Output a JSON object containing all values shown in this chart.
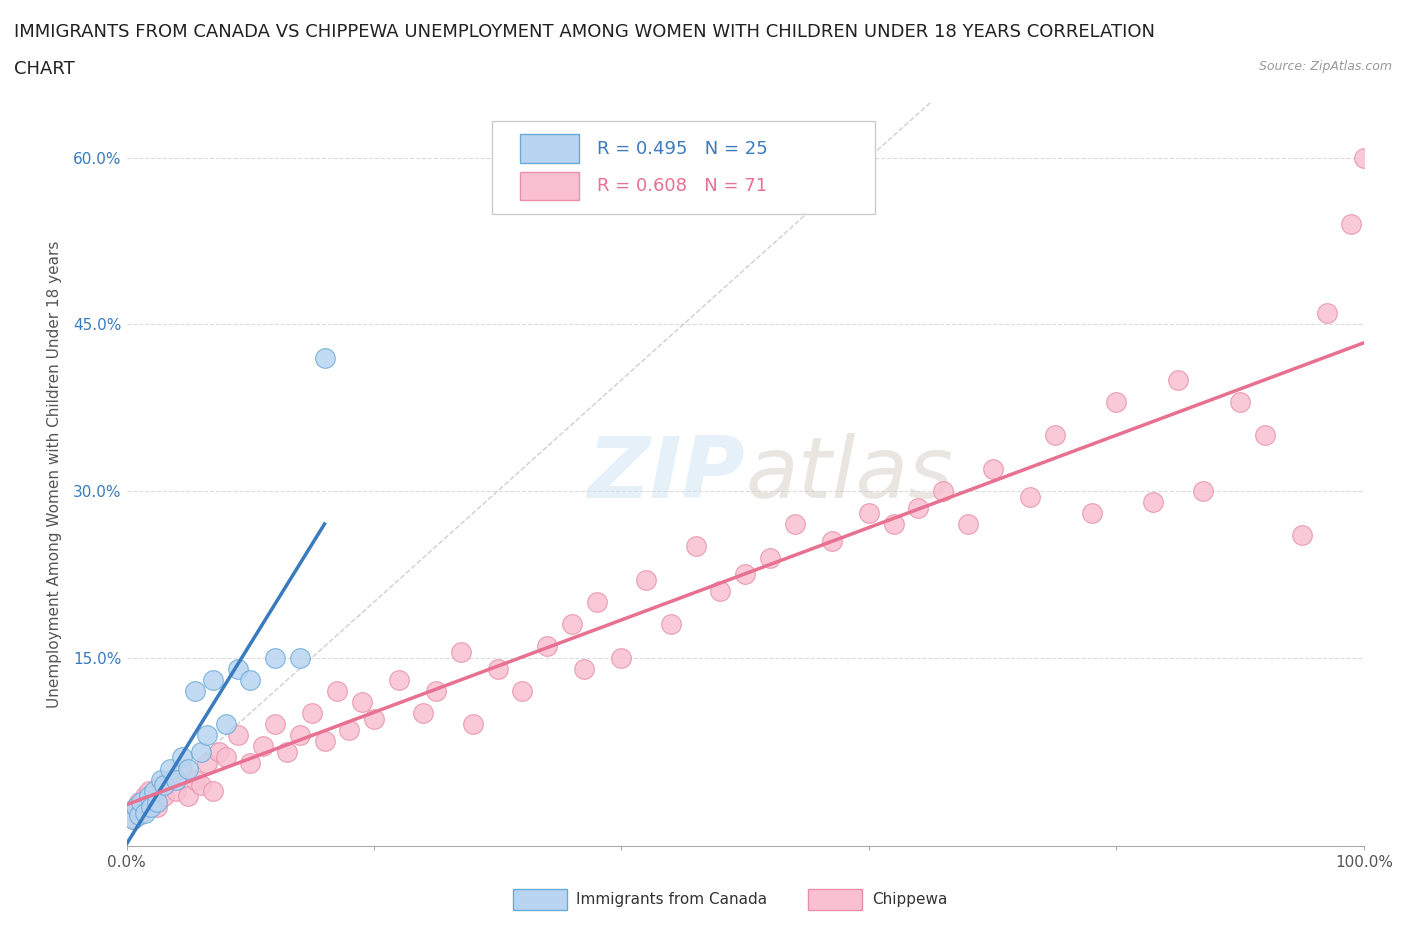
{
  "title_line1": "IMMIGRANTS FROM CANADA VS CHIPPEWA UNEMPLOYMENT AMONG WOMEN WITH CHILDREN UNDER 18 YEARS CORRELATION",
  "title_line2": "CHART",
  "source": "Source: ZipAtlas.com",
  "ylabel": "Unemployment Among Women with Children Under 18 years",
  "xlim": [
    0,
    1.0
  ],
  "ylim": [
    -0.02,
    0.65
  ],
  "xticks": [
    0.0,
    0.2,
    0.4,
    0.6,
    0.8,
    1.0
  ],
  "xticklabels": [
    "0.0%",
    "",
    "",
    "",
    "",
    "100.0%"
  ],
  "yticks": [
    0.0,
    0.15,
    0.3,
    0.45,
    0.6
  ],
  "yticklabels": [
    "",
    "15.0%",
    "30.0%",
    "45.0%",
    "60.0%"
  ],
  "watermark": "ZIPatlas",
  "legend_entry1_label": "Immigrants from Canada",
  "legend_entry2_label": "Chippewa",
  "r1": 0.495,
  "n1": 25,
  "r2": 0.608,
  "n2": 71,
  "blue_line_color": "#3a7abf",
  "pink_line_color": "#e87090",
  "scatter_blue_fill": "#b8d4f0",
  "scatter_blue_edge": "#6aaad8",
  "scatter_pink_fill": "#f8c0d0",
  "scatter_pink_edge": "#e890a8",
  "blue_points_x": [
    0.005,
    0.008,
    0.01,
    0.012,
    0.015,
    0.018,
    0.02,
    0.022,
    0.025,
    0.028,
    0.03,
    0.035,
    0.04,
    0.045,
    0.05,
    0.055,
    0.06,
    0.065,
    0.07,
    0.08,
    0.09,
    0.1,
    0.12,
    0.14,
    0.16
  ],
  "blue_points_y": [
    0.005,
    0.015,
    0.008,
    0.02,
    0.01,
    0.025,
    0.015,
    0.03,
    0.02,
    0.04,
    0.035,
    0.05,
    0.04,
    0.06,
    0.05,
    0.12,
    0.065,
    0.08,
    0.13,
    0.09,
    0.14,
    0.13,
    0.15,
    0.15,
    0.42
  ],
  "pink_points_x": [
    0.005,
    0.008,
    0.01,
    0.012,
    0.015,
    0.018,
    0.02,
    0.025,
    0.028,
    0.03,
    0.035,
    0.04,
    0.045,
    0.05,
    0.055,
    0.06,
    0.065,
    0.07,
    0.075,
    0.08,
    0.09,
    0.1,
    0.11,
    0.12,
    0.13,
    0.14,
    0.15,
    0.16,
    0.17,
    0.18,
    0.19,
    0.2,
    0.22,
    0.24,
    0.25,
    0.27,
    0.28,
    0.3,
    0.32,
    0.34,
    0.36,
    0.37,
    0.38,
    0.4,
    0.42,
    0.44,
    0.46,
    0.48,
    0.5,
    0.52,
    0.54,
    0.57,
    0.6,
    0.62,
    0.64,
    0.66,
    0.68,
    0.7,
    0.73,
    0.75,
    0.78,
    0.8,
    0.83,
    0.85,
    0.87,
    0.9,
    0.92,
    0.95,
    0.97,
    0.99,
    1.0
  ],
  "pink_points_y": [
    0.005,
    0.015,
    0.02,
    0.01,
    0.025,
    0.03,
    0.02,
    0.015,
    0.035,
    0.025,
    0.04,
    0.03,
    0.05,
    0.025,
    0.04,
    0.035,
    0.055,
    0.03,
    0.065,
    0.06,
    0.08,
    0.055,
    0.07,
    0.09,
    0.065,
    0.08,
    0.1,
    0.075,
    0.12,
    0.085,
    0.11,
    0.095,
    0.13,
    0.1,
    0.12,
    0.155,
    0.09,
    0.14,
    0.12,
    0.16,
    0.18,
    0.14,
    0.2,
    0.15,
    0.22,
    0.18,
    0.25,
    0.21,
    0.225,
    0.24,
    0.27,
    0.255,
    0.28,
    0.27,
    0.285,
    0.3,
    0.27,
    0.32,
    0.295,
    0.35,
    0.28,
    0.38,
    0.29,
    0.4,
    0.3,
    0.38,
    0.35,
    0.26,
    0.46,
    0.54,
    0.6
  ],
  "background_color": "#ffffff",
  "grid_color": "#d8d8d8",
  "title_fontsize": 13,
  "axis_label_fontsize": 11,
  "tick_fontsize": 11
}
